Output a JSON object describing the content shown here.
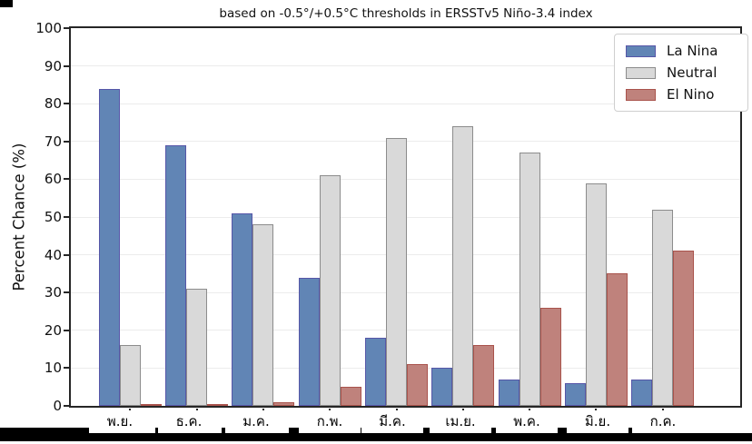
{
  "chart_data": {
    "type": "bar",
    "title": "based on -0.5°/+0.5°C thresholds in ERSSTv5 Niño-3.4 index",
    "xlabel": "",
    "ylabel": "Percent Chance (%)",
    "ylim": [
      0,
      100
    ],
    "yticks": [
      0,
      10,
      20,
      30,
      40,
      50,
      60,
      70,
      80,
      90,
      100
    ],
    "grid": true,
    "legend_position": "upper right",
    "categories": [
      "พ.ย.",
      "ธ.ค.",
      "ม.ค.",
      "ก.พ.",
      "มี.ค.",
      "เม.ย.",
      "พ.ค.",
      "มิ.ย.",
      "ก.ค."
    ],
    "series": [
      {
        "name": "La Nina",
        "fill": "#6185b5",
        "edge": "#5656a8",
        "values": [
          84,
          69,
          51,
          34,
          18,
          10,
          7,
          6,
          7
        ]
      },
      {
        "name": "Neutral",
        "fill": "#d9d9d9",
        "edge": "#8c8c8c",
        "values": [
          16,
          31,
          48,
          61,
          71,
          74,
          67,
          59,
          52
        ]
      },
      {
        "name": "El Nino",
        "fill": "#bf827c",
        "edge": "#a9534c",
        "values": [
          0,
          0,
          1,
          5,
          11,
          16,
          26,
          35,
          41
        ]
      }
    ],
    "style": {
      "frame_color": "#262626",
      "grid_color": "#ececec",
      "text_color": "#111111",
      "strip_color": "#000000",
      "label_box_color": "#ffffff"
    }
  }
}
